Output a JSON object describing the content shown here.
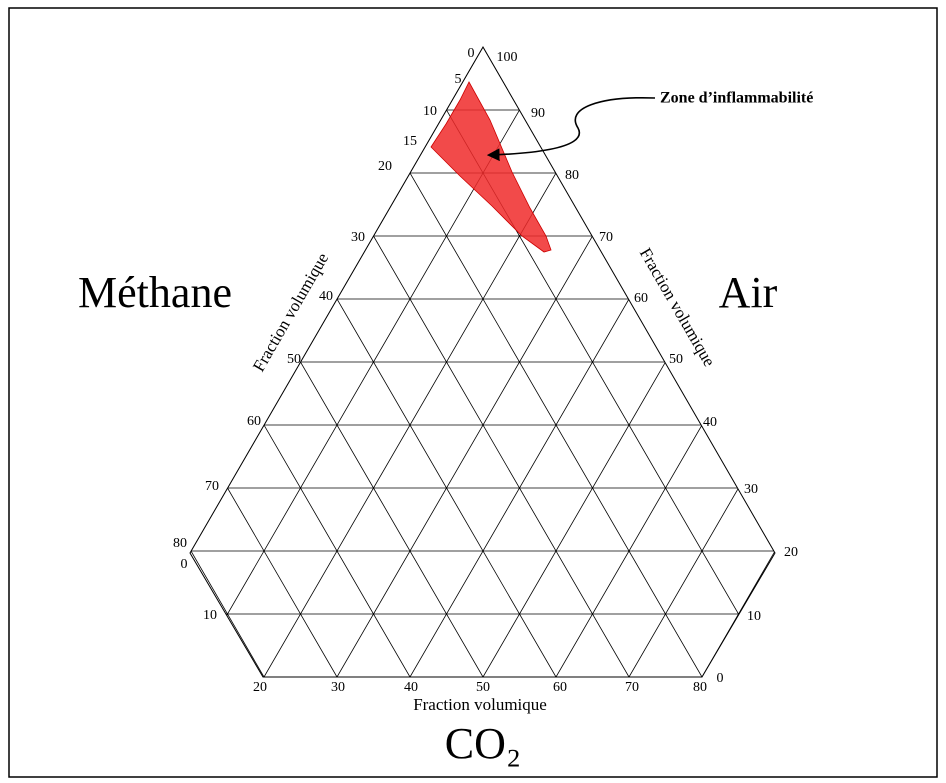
{
  "diagram": {
    "labels": {
      "methane": "Méthane",
      "air": "Air",
      "co2": "CO₂"
    },
    "axis_titles": {
      "left": "Fraction volumique",
      "right": "Fraction volumique",
      "bottom": "Fraction volumique"
    },
    "annotation": "Zone d’inflammabilité",
    "left_ticks": [
      0,
      5,
      10,
      15,
      20,
      30,
      40,
      50,
      60,
      70,
      80
    ],
    "left_lower_ticks": [
      0,
      10
    ],
    "right_ticks": [
      100,
      90,
      80,
      70,
      60,
      50,
      40,
      30,
      20
    ],
    "right_lower_ticks": [
      10,
      0
    ],
    "bottom_ticks": [
      20,
      30,
      40,
      50,
      60,
      70,
      80
    ]
  }
}
